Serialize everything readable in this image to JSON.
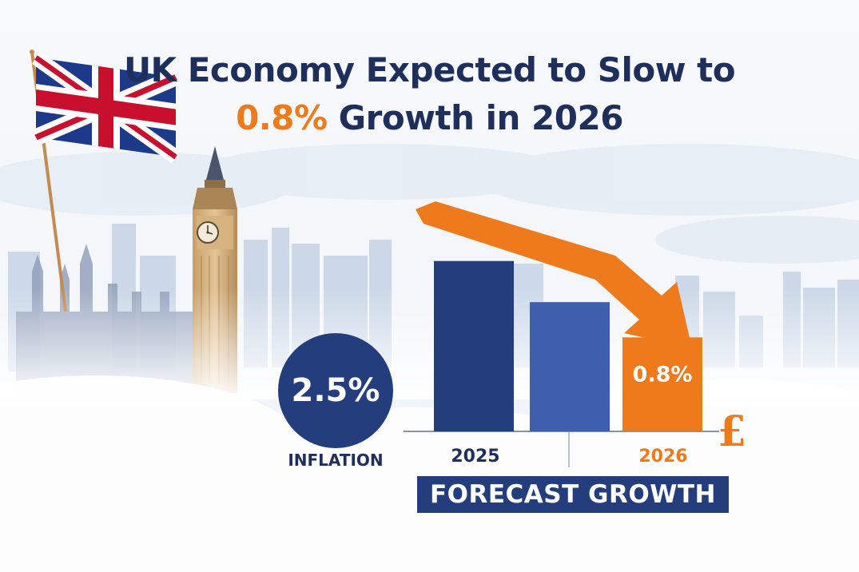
{
  "title": {
    "line1": "UK Economy Expected to Slow to",
    "line2_accent": "0.8%",
    "line2_rest": " Growth in 2026"
  },
  "inflation": {
    "value": "2.5%",
    "label": "INFLATION"
  },
  "banner": {
    "label": "FORECAST GROWTH"
  },
  "currency_symbol": "£",
  "icons": [
    "union-jack-flag-icon",
    "big-ben-icon",
    "parliament-icon",
    "downward-arrow-icon",
    "pound-sign-icon"
  ],
  "colors": {
    "navy": "#243d7d",
    "blue": "#3d5fae",
    "orange": "#ee7a1c",
    "title": "#1e2f5c"
  },
  "chart_data": {
    "type": "bar",
    "categories": [
      "2025",
      "",
      "2026"
    ],
    "values": [
      1.45,
      1.1,
      0.8
    ],
    "data_labels": [
      "",
      "",
      "0.8%"
    ],
    "colors": [
      "#243d7d",
      "#3d5fae",
      "#ee7a1c"
    ],
    "ylim": [
      0,
      1.55
    ],
    "title": "",
    "xlabel": "FORECAST GROWTH",
    "ylabel": ""
  }
}
